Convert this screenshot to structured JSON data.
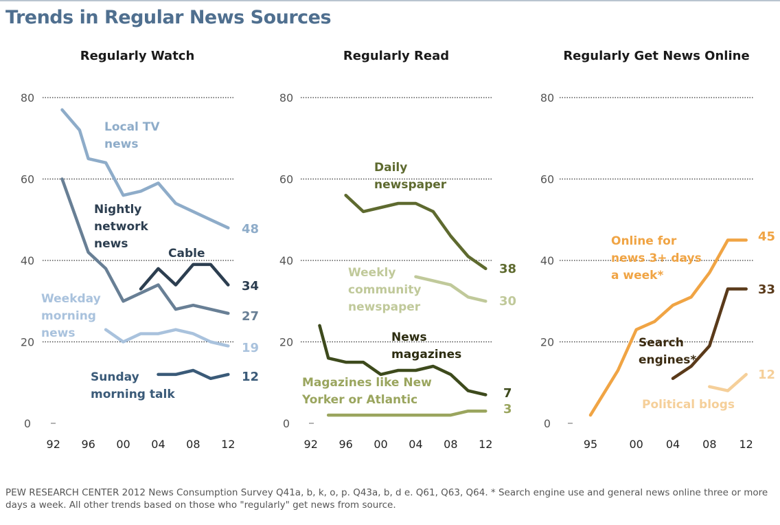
{
  "title": "Trends in Regular News Sources",
  "footnote": "PEW RESEARCH CENTER 2012 News Consumption Survey Q41a, b, k, o, p. Q43a, b, d e. Q61, Q63, Q64. * Search engine use and general news online three or more days a week. All other trends based on those who \"regularly\" get news from source.",
  "chart_data": [
    {
      "type": "line",
      "title": "Regularly Watch",
      "ylim": [
        0,
        80
      ],
      "yticks": [
        "0",
        "20",
        "40",
        "60",
        "80"
      ],
      "xticks": [
        {
          "x": 1992,
          "label": "92"
        },
        {
          "x": 1996,
          "label": "96"
        },
        {
          "x": 2000,
          "label": "00"
        },
        {
          "x": 2004,
          "label": "04"
        },
        {
          "x": 2008,
          "label": "08"
        },
        {
          "x": 2012,
          "label": "12"
        }
      ],
      "xlim": [
        1991,
        2013
      ],
      "grid": true,
      "series": [
        {
          "name": "Local TV news",
          "label_lines": [
            "Local TV",
            "news"
          ],
          "end_label": "48",
          "color": "#8eacc9",
          "x": [
            1993,
            1995,
            1996,
            1998,
            2000,
            2002,
            2004,
            2006,
            2008,
            2010,
            2012
          ],
          "y": [
            77,
            72,
            65,
            64,
            56,
            57,
            59,
            54,
            52,
            50,
            48
          ]
        },
        {
          "name": "Nightly network news",
          "label_lines": [
            "Nightly",
            "network",
            "news"
          ],
          "end_label": "27",
          "color": "#687f95",
          "x": [
            1993,
            1996,
            1998,
            2000,
            2002,
            2004,
            2006,
            2008,
            2010,
            2012
          ],
          "y": [
            60,
            42,
            38,
            30,
            32,
            34,
            28,
            29,
            28,
            27
          ]
        },
        {
          "name": "Cable",
          "label_lines": [
            "Cable"
          ],
          "end_label": "34",
          "color": "#2c3e50",
          "x": [
            2002,
            2004,
            2006,
            2008,
            2010,
            2012
          ],
          "y": [
            33,
            38,
            34,
            39,
            39,
            34
          ]
        },
        {
          "name": "Weekday morning news",
          "label_lines": [
            "Weekday",
            "morning",
            "news"
          ],
          "end_label": "19",
          "color": "#a9c2dd",
          "x": [
            1998,
            2000,
            2002,
            2004,
            2006,
            2008,
            2010,
            2012
          ],
          "y": [
            23,
            20,
            22,
            22,
            23,
            22,
            20,
            19
          ]
        },
        {
          "name": "Sunday morning talk",
          "label_lines": [
            "Sunday",
            "morning talk"
          ],
          "end_label": "12",
          "color": "#3a5a78",
          "x": [
            2004,
            2006,
            2008,
            2010,
            2012
          ],
          "y": [
            12,
            12,
            13,
            11,
            12
          ]
        }
      ]
    },
    {
      "type": "line",
      "title": "Regularly Read",
      "ylim": [
        0,
        80
      ],
      "yticks": [
        "0",
        "20",
        "40",
        "60",
        "80"
      ],
      "xticks": [
        {
          "x": 1992,
          "label": "92"
        },
        {
          "x": 1996,
          "label": "96"
        },
        {
          "x": 2000,
          "label": "00"
        },
        {
          "x": 2004,
          "label": "04"
        },
        {
          "x": 2008,
          "label": "08"
        },
        {
          "x": 2012,
          "label": "12"
        }
      ],
      "xlim": [
        1991,
        2013
      ],
      "grid": true,
      "series": [
        {
          "name": "Daily newspaper",
          "label_lines": [
            "Daily",
            "newspaper"
          ],
          "end_label": "38",
          "color": "#5e6a2f",
          "x": [
            1996,
            1998,
            2000,
            2002,
            2004,
            2006,
            2008,
            2010,
            2012
          ],
          "y": [
            56,
            52,
            53,
            54,
            54,
            52,
            46,
            41,
            38
          ]
        },
        {
          "name": "Weekly community newspaper",
          "label_lines": [
            "Weekly",
            "community",
            "newspaper"
          ],
          "end_label": "30",
          "color": "#c0c99a",
          "x": [
            2004,
            2006,
            2008,
            2010,
            2012
          ],
          "y": [
            36,
            35,
            34,
            31,
            30
          ]
        },
        {
          "name": "News magazines",
          "label_lines": [
            "News",
            "magazines"
          ],
          "end_label": "7",
          "color": "#3d4a1c",
          "x": [
            1993,
            1994,
            1996,
            1998,
            2000,
            2002,
            2004,
            2006,
            2008,
            2010,
            2012
          ],
          "y": [
            24,
            16,
            15,
            15,
            12,
            13,
            13,
            14,
            12,
            8,
            7
          ]
        },
        {
          "name": "Magazines like New Yorker or Atlantic",
          "label_lines": [
            "Magazines like New",
            "Yorker or Atlantic"
          ],
          "end_label": "3",
          "color": "#9aa55e",
          "x": [
            1994,
            1996,
            1998,
            2000,
            2002,
            2004,
            2006,
            2008,
            2010,
            2012
          ],
          "y": [
            2,
            2,
            2,
            2,
            2,
            2,
            2,
            2,
            3,
            3
          ]
        }
      ]
    },
    {
      "type": "line",
      "title": "Regularly Get News Online",
      "ylim": [
        0,
        80
      ],
      "yticks": [
        "0",
        "20",
        "40",
        "60",
        "80"
      ],
      "xticks": [
        {
          "x": 1995,
          "label": "95"
        },
        {
          "x": 2000,
          "label": "00"
        },
        {
          "x": 2004,
          "label": "04"
        },
        {
          "x": 2008,
          "label": "08"
        },
        {
          "x": 2012,
          "label": "12"
        }
      ],
      "xlim": [
        1992,
        2013
      ],
      "grid": true,
      "series": [
        {
          "name": "Online for news 3+ days a week*",
          "label_lines": [
            "Online for",
            "news 3+ days",
            "a week*"
          ],
          "end_label": "45",
          "color": "#f0a444",
          "x": [
            1995,
            1998,
            2000,
            2002,
            2004,
            2006,
            2008,
            2010,
            2012
          ],
          "y": [
            2,
            13,
            23,
            25,
            29,
            31,
            37,
            45,
            45
          ]
        },
        {
          "name": "Search engines*",
          "label_lines": [
            "Search",
            "engines*"
          ],
          "end_label": "33",
          "color": "#5a3a1a",
          "x": [
            2004,
            2006,
            2008,
            2010,
            2012
          ],
          "y": [
            11,
            14,
            19,
            33,
            33
          ]
        },
        {
          "name": "Political blogs",
          "label_lines": [
            "Political blogs"
          ],
          "end_label": "12",
          "color": "#f5cf99",
          "x": [
            2008,
            2010,
            2012
          ],
          "y": [
            9,
            8,
            12
          ]
        }
      ]
    }
  ]
}
